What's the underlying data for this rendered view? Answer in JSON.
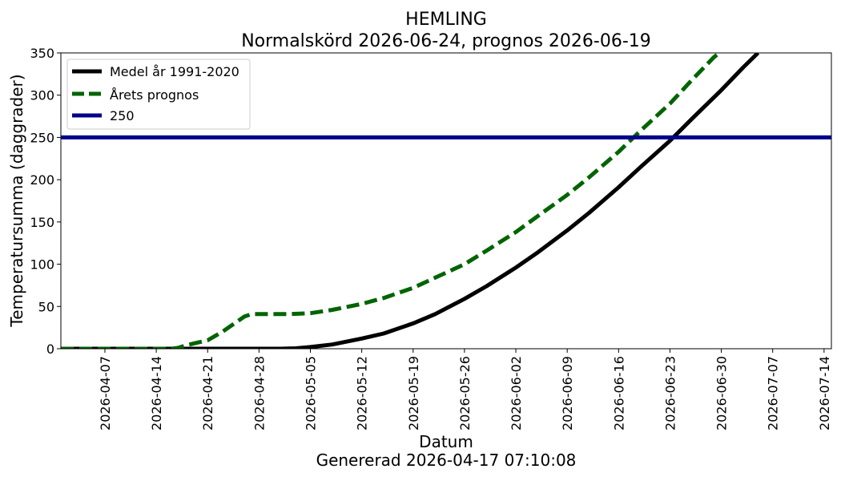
{
  "chart_data": {
    "type": "line",
    "title": "HEMLING",
    "subtitle": "Normalskörd 2026-06-24, prognos 2026-06-19",
    "xlabel": "Datum",
    "footer": "Genererad 2026-04-17 07:10:08",
    "ylabel": "Temperatursumma (daggrader)",
    "xlim": [
      "2026-04-01",
      "2026-07-15"
    ],
    "ylim": [
      0,
      350
    ],
    "yticks": [
      "0",
      "50",
      "100",
      "150",
      "200",
      "250",
      "300",
      "350"
    ],
    "xticks": [
      "2026-04-07",
      "2026-04-14",
      "2026-04-21",
      "2026-04-28",
      "2026-05-05",
      "2026-05-12",
      "2026-05-19",
      "2026-05-26",
      "2026-06-02",
      "2026-06-09",
      "2026-06-16",
      "2026-06-23",
      "2026-06-30",
      "2026-07-07",
      "2026-07-14"
    ],
    "grid": false,
    "legend_position": "top-left",
    "series": [
      {
        "name": "Medel år 1991-2020",
        "color": "#000000",
        "style": "solid",
        "points": [
          [
            "2026-04-01",
            0
          ],
          [
            "2026-04-14",
            0
          ],
          [
            "2026-04-28",
            0
          ],
          [
            "2026-05-01",
            0
          ],
          [
            "2026-05-03",
            0.5
          ],
          [
            "2026-05-05",
            2
          ],
          [
            "2026-05-08",
            5
          ],
          [
            "2026-05-12",
            12
          ],
          [
            "2026-05-15",
            18
          ],
          [
            "2026-05-19",
            30
          ],
          [
            "2026-05-22",
            41
          ],
          [
            "2026-05-26",
            59
          ],
          [
            "2026-05-29",
            74
          ],
          [
            "2026-06-02",
            96
          ],
          [
            "2026-06-05",
            114
          ],
          [
            "2026-06-09",
            140
          ],
          [
            "2026-06-12",
            161
          ],
          [
            "2026-06-16",
            191
          ],
          [
            "2026-06-19",
            215
          ],
          [
            "2026-06-23",
            246
          ],
          [
            "2026-06-26",
            272
          ],
          [
            "2026-06-30",
            306
          ],
          [
            "2026-07-03",
            333
          ],
          [
            "2026-07-05",
            350
          ]
        ]
      },
      {
        "name": "Årets prognos",
        "color": "#006400",
        "style": "dashed",
        "points": [
          [
            "2026-04-01",
            0
          ],
          [
            "2026-04-14",
            0
          ],
          [
            "2026-04-16",
            0
          ],
          [
            "2026-04-17",
            1
          ],
          [
            "2026-04-18",
            4
          ],
          [
            "2026-04-19",
            6
          ],
          [
            "2026-04-20",
            8
          ],
          [
            "2026-04-21",
            10
          ],
          [
            "2026-04-22",
            15
          ],
          [
            "2026-04-23",
            20
          ],
          [
            "2026-04-24",
            26
          ],
          [
            "2026-04-25",
            32
          ],
          [
            "2026-04-26",
            38
          ],
          [
            "2026-04-27",
            41
          ],
          [
            "2026-04-28",
            41
          ],
          [
            "2026-05-02",
            41
          ],
          [
            "2026-05-05",
            42
          ],
          [
            "2026-05-08",
            46
          ],
          [
            "2026-05-12",
            53
          ],
          [
            "2026-05-15",
            60
          ],
          [
            "2026-05-19",
            72
          ],
          [
            "2026-05-22",
            84
          ],
          [
            "2026-05-26",
            100
          ],
          [
            "2026-05-29",
            116
          ],
          [
            "2026-06-02",
            138
          ],
          [
            "2026-06-05",
            157
          ],
          [
            "2026-06-09",
            182
          ],
          [
            "2026-06-12",
            203
          ],
          [
            "2026-06-16",
            233
          ],
          [
            "2026-06-19",
            258
          ],
          [
            "2026-06-23",
            290
          ],
          [
            "2026-06-26",
            318
          ],
          [
            "2026-06-29",
            345
          ],
          [
            "2026-06-30",
            352
          ]
        ]
      },
      {
        "name": "250",
        "color": "#00008B",
        "style": "solid",
        "points": [
          [
            "2026-04-01",
            250
          ],
          [
            "2026-07-15",
            250
          ]
        ]
      }
    ]
  }
}
